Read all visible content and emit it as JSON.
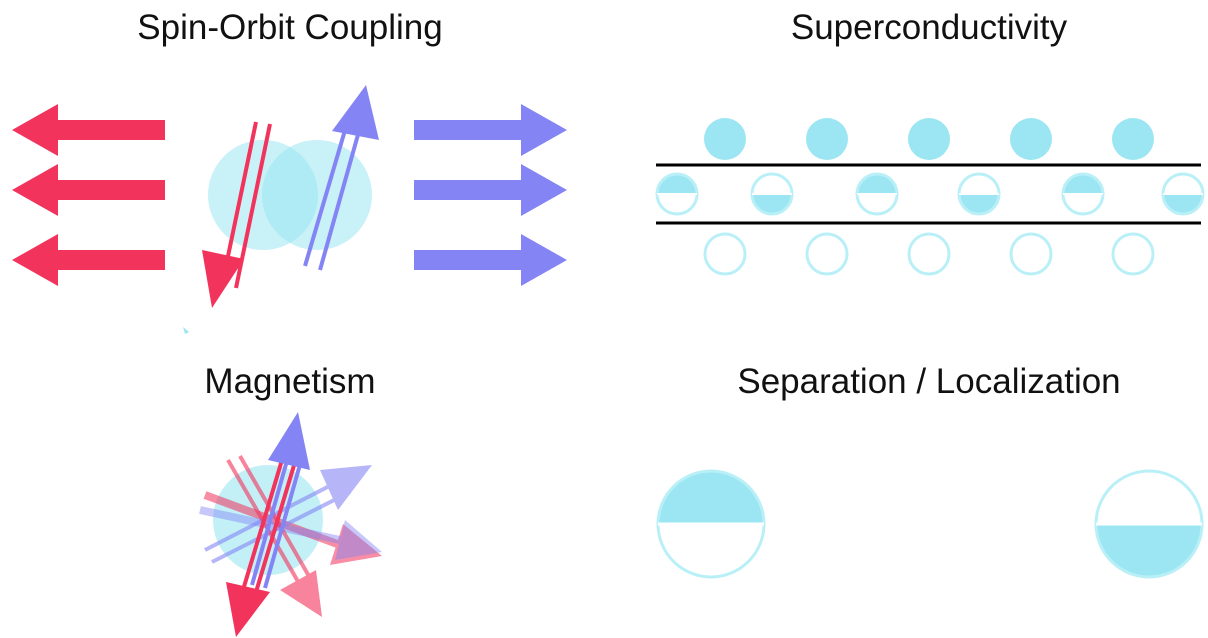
{
  "panels": {
    "spin_orbit": {
      "title": "Spin-Orbit Coupling"
    },
    "superconductivity": {
      "title": "Superconductivity"
    },
    "magnetism": {
      "title": "Magnetism"
    },
    "separation": {
      "title": "Separation / Localization"
    }
  },
  "colors": {
    "spin_down": "#f2335c",
    "spin_up": "#8484f5",
    "orbital": "#9be6f2",
    "orbital_stroke": "#b9f0f7",
    "line": "#000000",
    "text": "#111111"
  }
}
